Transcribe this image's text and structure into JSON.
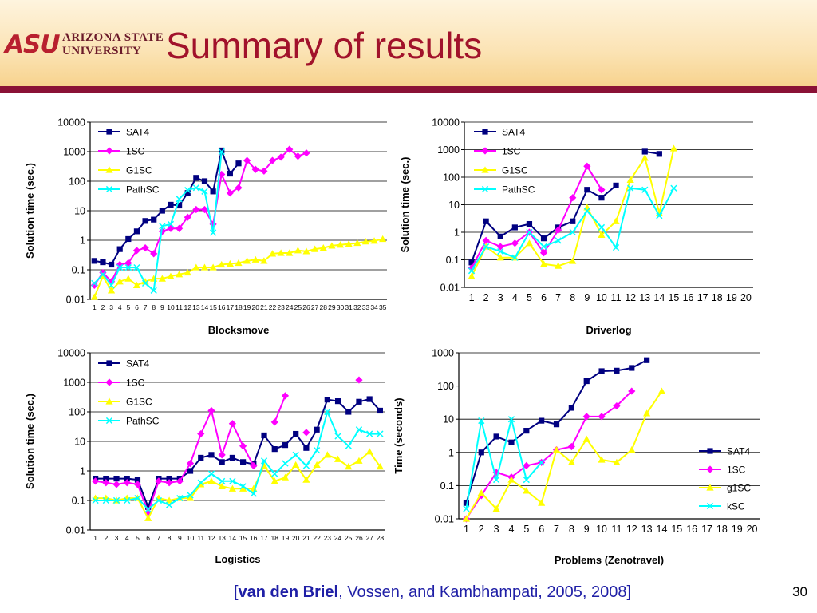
{
  "header": {
    "logo_mark": "ASU",
    "logo_line1": "ARIZONA STATE",
    "logo_line2": "UNIVERSITY",
    "title": "Summary of results"
  },
  "footer": {
    "citation_open": "[",
    "citation_bold": "van den Briel",
    "citation_rest": ", Vossen, and Kambhampati, 2005, 2008]",
    "page_number": "30"
  },
  "colors": {
    "title": "#a1122b",
    "header_rule": "#8a1236",
    "SAT4": "#000080",
    "1SC": "#ff00ff",
    "G1SC": "#ffff00",
    "PathSC": "#00ffff"
  },
  "chart_data": [
    {
      "id": "blocksmove",
      "type": "line",
      "yscale": "log",
      "ylim": [
        0.01,
        10000
      ],
      "ylabel": "Solution time (sec.)",
      "xlabel": "Blocksmove",
      "legend_position": "top-left",
      "grid": true,
      "yticks": [
        "0.01",
        "0.1",
        "1",
        "10",
        "100",
        "1000",
        "10000"
      ],
      "categories": [
        "1",
        "2",
        "3",
        "4",
        "5",
        "6",
        "7",
        "8",
        "9",
        "10",
        "11",
        "12",
        "13",
        "14",
        "15",
        "16",
        "17",
        "18",
        "19",
        "20",
        "21",
        "22",
        "23",
        "24",
        "25",
        "26",
        "27",
        "28",
        "29",
        "30",
        "31",
        "32",
        "33",
        "34",
        "35"
      ],
      "series": [
        {
          "name": "SAT4",
          "values": [
            0.2,
            0.18,
            0.15,
            0.5,
            1.1,
            2,
            4.5,
            5,
            10,
            16,
            15,
            40,
            130,
            100,
            45,
            1100,
            180,
            400,
            null,
            null,
            null,
            null,
            null,
            null,
            null,
            null,
            null,
            null,
            null,
            null,
            null,
            null,
            null,
            null,
            null
          ]
        },
        {
          "name": "1SC",
          "values": [
            0.03,
            0.08,
            0.04,
            0.15,
            0.17,
            0.45,
            0.55,
            0.35,
            2,
            2.5,
            2.5,
            6,
            11,
            11,
            3.5,
            170,
            40,
            60,
            500,
            250,
            220,
            500,
            650,
            1200,
            700,
            900,
            null,
            null,
            null,
            null,
            null,
            null,
            null,
            null,
            null
          ]
        },
        {
          "name": "G1SC",
          "values": [
            0.012,
            0.06,
            0.02,
            0.04,
            0.05,
            0.03,
            0.04,
            0.05,
            0.05,
            0.06,
            0.07,
            0.08,
            0.12,
            0.12,
            0.12,
            0.15,
            0.16,
            0.17,
            0.2,
            0.22,
            0.2,
            0.35,
            0.37,
            0.37,
            0.45,
            0.42,
            0.5,
            0.55,
            0.65,
            0.7,
            0.75,
            0.8,
            0.9,
            0.95,
            1.1
          ]
        },
        {
          "name": "PathSC",
          "values": [
            0.035,
            0.07,
            0.03,
            0.12,
            0.12,
            0.12,
            0.035,
            0.02,
            3,
            3.5,
            25,
            50,
            60,
            45,
            1.8,
            1000,
            null,
            null,
            null,
            null,
            null,
            null,
            null,
            null,
            null,
            null,
            null,
            null,
            null,
            null,
            null,
            null,
            null,
            null,
            null
          ]
        }
      ]
    },
    {
      "id": "driverlog",
      "type": "line",
      "yscale": "log",
      "ylim": [
        0.01,
        10000
      ],
      "ylabel": "Solution time (sec.)",
      "xlabel": "Driverlog",
      "legend_position": "top-left",
      "grid": true,
      "yticks": [
        "0.01",
        "0.1",
        "1",
        "10",
        "100",
        "1000",
        "10000"
      ],
      "categories": [
        "1",
        "2",
        "3",
        "4",
        "5",
        "6",
        "7",
        "8",
        "9",
        "10",
        "11",
        "12",
        "13",
        "14",
        "15",
        "16",
        "17",
        "18",
        "19",
        "20"
      ],
      "series": [
        {
          "name": "SAT4",
          "values": [
            0.08,
            2.5,
            0.7,
            1.5,
            2,
            0.6,
            1.5,
            2.5,
            35,
            18,
            50,
            null,
            850,
            700,
            null,
            null,
            null,
            null,
            null,
            null
          ]
        },
        {
          "name": "1SC",
          "values": [
            0.05,
            0.5,
            0.3,
            0.4,
            1,
            0.18,
            1.2,
            18,
            250,
            35,
            null,
            null,
            null,
            null,
            null,
            null,
            null,
            null,
            null,
            null
          ]
        },
        {
          "name": "G1SC",
          "values": [
            0.025,
            0.3,
            0.12,
            0.12,
            0.4,
            0.07,
            0.06,
            0.09,
            8,
            0.8,
            2.5,
            80,
            500,
            5,
            1100,
            null,
            null,
            null,
            null,
            null
          ]
        },
        {
          "name": "PathSC",
          "values": [
            0.04,
            0.3,
            0.2,
            0.12,
            1,
            0.3,
            0.5,
            1,
            6,
            1.5,
            0.28,
            40,
            35,
            4,
            40,
            null,
            null,
            null,
            null,
            null
          ]
        }
      ]
    },
    {
      "id": "logistics",
      "type": "line",
      "yscale": "log",
      "ylim": [
        0.01,
        10000
      ],
      "ylabel": "Solution time (sec.)",
      "xlabel": "Logistics",
      "legend_position": "top-left",
      "grid": true,
      "yticks": [
        "0.01",
        "0.1",
        "1",
        "10",
        "100",
        "1000",
        "10000"
      ],
      "categories": [
        "1",
        "2",
        "3",
        "4",
        "5",
        "6",
        "7",
        "8",
        "9",
        "10",
        "11",
        "12",
        "13",
        "14",
        "15",
        "16",
        "17",
        "18",
        "19",
        "20",
        "21",
        "22",
        "23",
        "24",
        "25",
        "26",
        "27",
        "28"
      ],
      "series": [
        {
          "name": "SAT4",
          "values": [
            0.55,
            0.55,
            0.55,
            0.55,
            0.5,
            0.06,
            0.55,
            0.55,
            0.55,
            1,
            2.8,
            3.5,
            2,
            2.8,
            2,
            1.7,
            16,
            5.5,
            7.5,
            18,
            6,
            25,
            260,
            230,
            100,
            220,
            270,
            110
          ]
        },
        {
          "name": "1SC",
          "values": [
            0.45,
            0.4,
            0.35,
            0.4,
            0.35,
            0.04,
            0.45,
            0.4,
            0.45,
            1.8,
            18,
            110,
            3.5,
            40,
            7,
            1.5,
            null,
            45,
            350,
            null,
            20,
            null,
            null,
            null,
            null,
            1200,
            null,
            null
          ]
        },
        {
          "name": "G1SC",
          "values": [
            0.12,
            0.12,
            0.1,
            0.12,
            0.12,
            0.025,
            0.12,
            0.1,
            0.12,
            0.12,
            0.35,
            0.45,
            0.3,
            0.25,
            0.25,
            0.25,
            1.5,
            0.45,
            0.6,
            1.6,
            0.5,
            1.6,
            3.5,
            2.5,
            1.4,
            2.2,
            4.5,
            1.4
          ]
        },
        {
          "name": "PathSC",
          "values": [
            0.1,
            0.1,
            0.1,
            0.1,
            0.12,
            0.05,
            0.1,
            0.07,
            0.12,
            0.15,
            0.4,
            0.8,
            0.45,
            0.45,
            0.3,
            0.17,
            2.2,
            0.8,
            1.8,
            3.5,
            1.5,
            5,
            100,
            15,
            7,
            25,
            18,
            18
          ]
        }
      ]
    },
    {
      "id": "zenotravel",
      "type": "line",
      "yscale": "log",
      "ylim": [
        0.01,
        1000
      ],
      "ylabel": "Time (seconds)",
      "xlabel": "Problems (Zenotravel)",
      "legend_position": "bottom-right",
      "grid": true,
      "yticks": [
        "0.01",
        "0.1",
        "1",
        "10",
        "100",
        "1000"
      ],
      "categories": [
        "1",
        "2",
        "3",
        "4",
        "5",
        "6",
        "7",
        "8",
        "9",
        "10",
        "11",
        "12",
        "13",
        "14",
        "15",
        "16",
        "17",
        "18",
        "19",
        "20"
      ],
      "series": [
        {
          "name": "SAT4",
          "values": [
            0.03,
            1,
            3,
            2,
            4.5,
            9,
            7,
            22,
            140,
            280,
            290,
            350,
            600,
            null,
            null,
            null,
            null,
            null,
            null,
            null
          ]
        },
        {
          "name": "1SC",
          "values": [
            0.01,
            0.05,
            0.25,
            0.18,
            0.4,
            0.5,
            1.2,
            1.5,
            12,
            12,
            25,
            70,
            null,
            null,
            null,
            null,
            null,
            null,
            null,
            null
          ]
        },
        {
          "name": "g1SC",
          "values": [
            0.01,
            0.06,
            0.02,
            0.15,
            0.07,
            0.03,
            1.2,
            0.5,
            2.5,
            0.6,
            0.5,
            1.2,
            15,
            70,
            null,
            null,
            null,
            null,
            null,
            null
          ]
        },
        {
          "name": "kSC",
          "values": [
            0.02,
            9,
            0.15,
            10,
            0.15,
            0.5,
            null,
            null,
            null,
            null,
            null,
            null,
            null,
            null,
            null,
            null,
            null,
            null,
            null,
            null
          ]
        }
      ]
    }
  ]
}
